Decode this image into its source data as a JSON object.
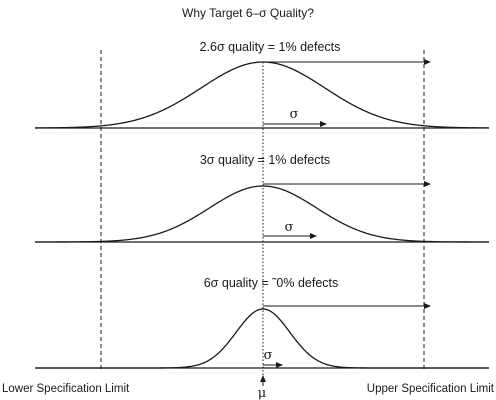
{
  "title": "Why Target 6–σ Quality?",
  "panels": [
    {
      "title": "2.6σ quality = 1% defects",
      "sigma_multiple": 2.6,
      "sigma_label": "σ"
    },
    {
      "title": "3σ quality = 1% defects",
      "sigma_multiple": 3,
      "sigma_label": "σ"
    },
    {
      "title": "6σ quality = ˜0% defects",
      "sigma_multiple": 6,
      "sigma_label": "σ"
    }
  ],
  "mean_label": "μ",
  "lower_limit_label": "Lower Specification Limit",
  "upper_limit_label": "Upper Specification Limit"
}
